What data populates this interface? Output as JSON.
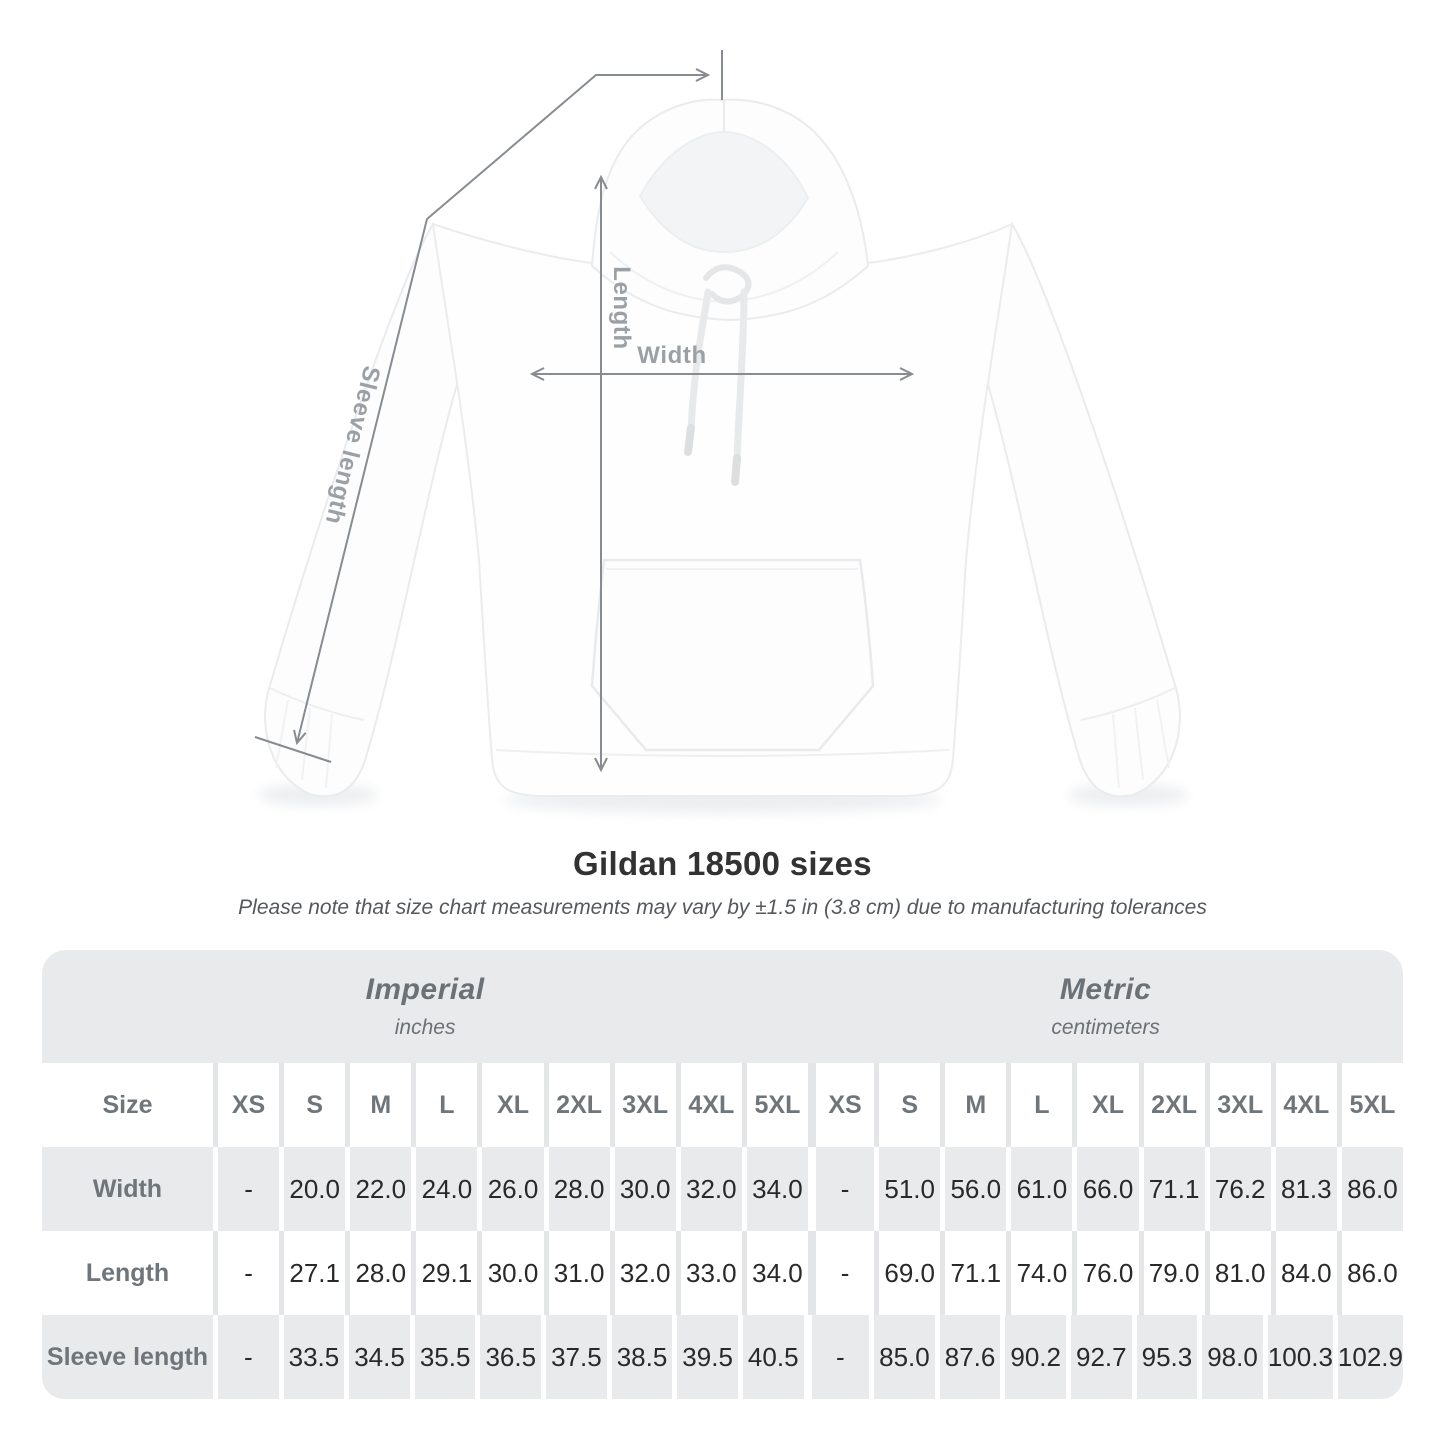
{
  "diagram": {
    "labels": {
      "length": "Length",
      "width": "Width",
      "sleeve": "Sleeve length"
    },
    "line_color": "#878c91",
    "label_color": "#9aa0a5"
  },
  "heading": {
    "title": "Gildan 18500 sizes",
    "subtitle": "Please note that size chart measurements may vary by ±1.5 in (3.8 cm) due to manufacturing tolerances"
  },
  "table": {
    "colors": {
      "band": "#e9eaeb",
      "header_text": "#6e757b",
      "value_text": "#292929"
    },
    "groups": [
      {
        "label": "Imperial",
        "unit": "inches"
      },
      {
        "label": "Metric",
        "unit": "centimeters"
      }
    ],
    "size_header": "Size",
    "sizes": [
      "XS",
      "S",
      "M",
      "L",
      "XL",
      "2XL",
      "3XL",
      "4XL",
      "5XL"
    ],
    "rows": [
      {
        "label": "Width",
        "imperial": [
          "-",
          "20.0",
          "22.0",
          "24.0",
          "26.0",
          "28.0",
          "30.0",
          "32.0",
          "34.0"
        ],
        "metric": [
          "-",
          "51.0",
          "56.0",
          "61.0",
          "66.0",
          "71.1",
          "76.2",
          "81.3",
          "86.0"
        ]
      },
      {
        "label": "Length",
        "imperial": [
          "-",
          "27.1",
          "28.0",
          "29.1",
          "30.0",
          "31.0",
          "32.0",
          "33.0",
          "34.0"
        ],
        "metric": [
          "-",
          "69.0",
          "71.1",
          "74.0",
          "76.0",
          "79.0",
          "81.0",
          "84.0",
          "86.0"
        ]
      },
      {
        "label": "Sleeve length",
        "imperial": [
          "-",
          "33.5",
          "34.5",
          "35.5",
          "36.5",
          "37.5",
          "38.5",
          "39.5",
          "40.5"
        ],
        "metric": [
          "-",
          "85.0",
          "87.6",
          "90.2",
          "92.7",
          "95.3",
          "98.0",
          "100.3",
          "102.9"
        ]
      }
    ]
  }
}
